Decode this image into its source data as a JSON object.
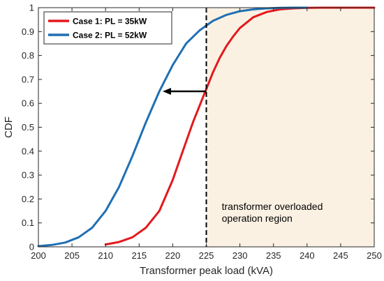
{
  "chart_data": {
    "type": "line",
    "xlabel": "Transformer peak load (kVA)",
    "ylabel": "CDF",
    "xlim": [
      200,
      250
    ],
    "ylim": [
      0,
      1
    ],
    "x_ticks": [
      "200",
      "205",
      "210",
      "215",
      "220",
      "225",
      "230",
      "235",
      "240",
      "245",
      "250"
    ],
    "y_ticks": [
      "0",
      "0.1",
      "0.2",
      "0.3",
      "0.4",
      "0.5",
      "0.6",
      "0.7",
      "0.8",
      "0.9",
      "1"
    ],
    "grid": false,
    "legend_position": "top-left",
    "series": [
      {
        "name": "Case 1: PL = 35kW",
        "color": "#e3191c",
        "x": [
          210,
          212,
          214,
          216,
          218,
          220,
          221,
          222,
          223,
          224,
          225,
          226,
          227,
          228,
          229,
          230,
          232,
          234,
          236,
          238,
          240,
          242,
          245,
          250
        ],
        "y": [
          0.01,
          0.02,
          0.04,
          0.08,
          0.15,
          0.28,
          0.36,
          0.44,
          0.52,
          0.59,
          0.66,
          0.73,
          0.79,
          0.84,
          0.88,
          0.915,
          0.96,
          0.982,
          0.993,
          0.997,
          0.999,
          1,
          1,
          1
        ]
      },
      {
        "name": "Case 2: PL = 52kW",
        "color": "#1f6fb4",
        "x": [
          200,
          202,
          204,
          206,
          208,
          210,
          212,
          214,
          216,
          218,
          220,
          222,
          224,
          225,
          226,
          228,
          230,
          232,
          234,
          236,
          238,
          240
        ],
        "y": [
          0.003,
          0.008,
          0.018,
          0.04,
          0.08,
          0.15,
          0.25,
          0.38,
          0.52,
          0.65,
          0.76,
          0.85,
          0.905,
          0.925,
          0.945,
          0.97,
          0.985,
          0.993,
          0.997,
          0.999,
          1,
          1
        ]
      }
    ],
    "annotations": {
      "threshold_x": 225,
      "arrow_y": 0.65,
      "arrow_from_x": 225,
      "arrow_to_x": 218.5,
      "region_text": [
        "transformer overloaded",
        "operation region"
      ],
      "region_color": "#fbf1e3"
    }
  }
}
